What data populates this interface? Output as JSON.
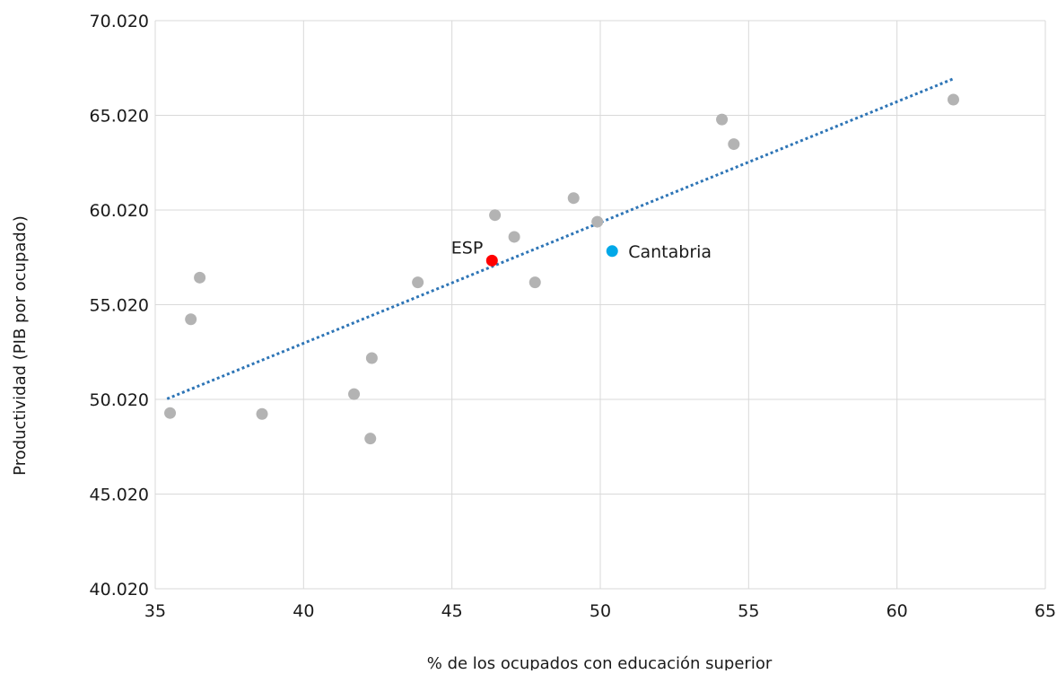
{
  "chart_data": {
    "type": "scatter",
    "title": "",
    "xlabel": "% de los ocupados con educación superior",
    "ylabel": "Productividad (PIB por ocupado)",
    "xlim": [
      35,
      65
    ],
    "ylim": [
      40020,
      70020
    ],
    "xticks": [
      35,
      40,
      45,
      50,
      55,
      60,
      65
    ],
    "xtick_labels": [
      "35",
      "40",
      "45",
      "50",
      "55",
      "60",
      "65"
    ],
    "yticks": [
      40020,
      45020,
      50020,
      55020,
      60020,
      65020,
      70020
    ],
    "ytick_labels": [
      "40.020",
      "45.020",
      "50.020",
      "55.020",
      "60.020",
      "65.020",
      "70.020"
    ],
    "grid": true,
    "colors": {
      "regions": "#b3b3b3",
      "esp": "#ff0000",
      "cantabria": "#00a8e8",
      "trendline": "#2e75b6",
      "grid": "#d9d9d9"
    },
    "series": [
      {
        "points": [
          {
            "x": 35.5,
            "y": 49300
          },
          {
            "x": 36.2,
            "y": 54250
          },
          {
            "x": 36.5,
            "y": 56450
          },
          {
            "x": 38.6,
            "y": 49250
          },
          {
            "x": 41.7,
            "y": 50300
          },
          {
            "x": 42.25,
            "y": 47950
          },
          {
            "x": 42.3,
            "y": 52200
          },
          {
            "x": 43.85,
            "y": 56200
          },
          {
            "x": 46.45,
            "y": 59750
          },
          {
            "x": 47.1,
            "y": 58600
          },
          {
            "x": 47.8,
            "y": 56200
          },
          {
            "x": 49.1,
            "y": 60650
          },
          {
            "x": 49.9,
            "y": 59400
          },
          {
            "x": 54.1,
            "y": 64800
          },
          {
            "x": 54.5,
            "y": 63500
          },
          {
            "x": 61.9,
            "y": 65850
          }
        ]
      },
      {
        "name": "ESP",
        "points": [
          {
            "x": 46.35,
            "y": 57350
          }
        ]
      },
      {
        "name": "Cantabria",
        "points": [
          {
            "x": 50.4,
            "y": 57850
          }
        ]
      }
    ],
    "trendline": {
      "type": "linear",
      "style": "dotted",
      "from": {
        "x": 35.4,
        "y": 50050
      },
      "to": {
        "x": 61.9,
        "y": 66950
      }
    }
  }
}
